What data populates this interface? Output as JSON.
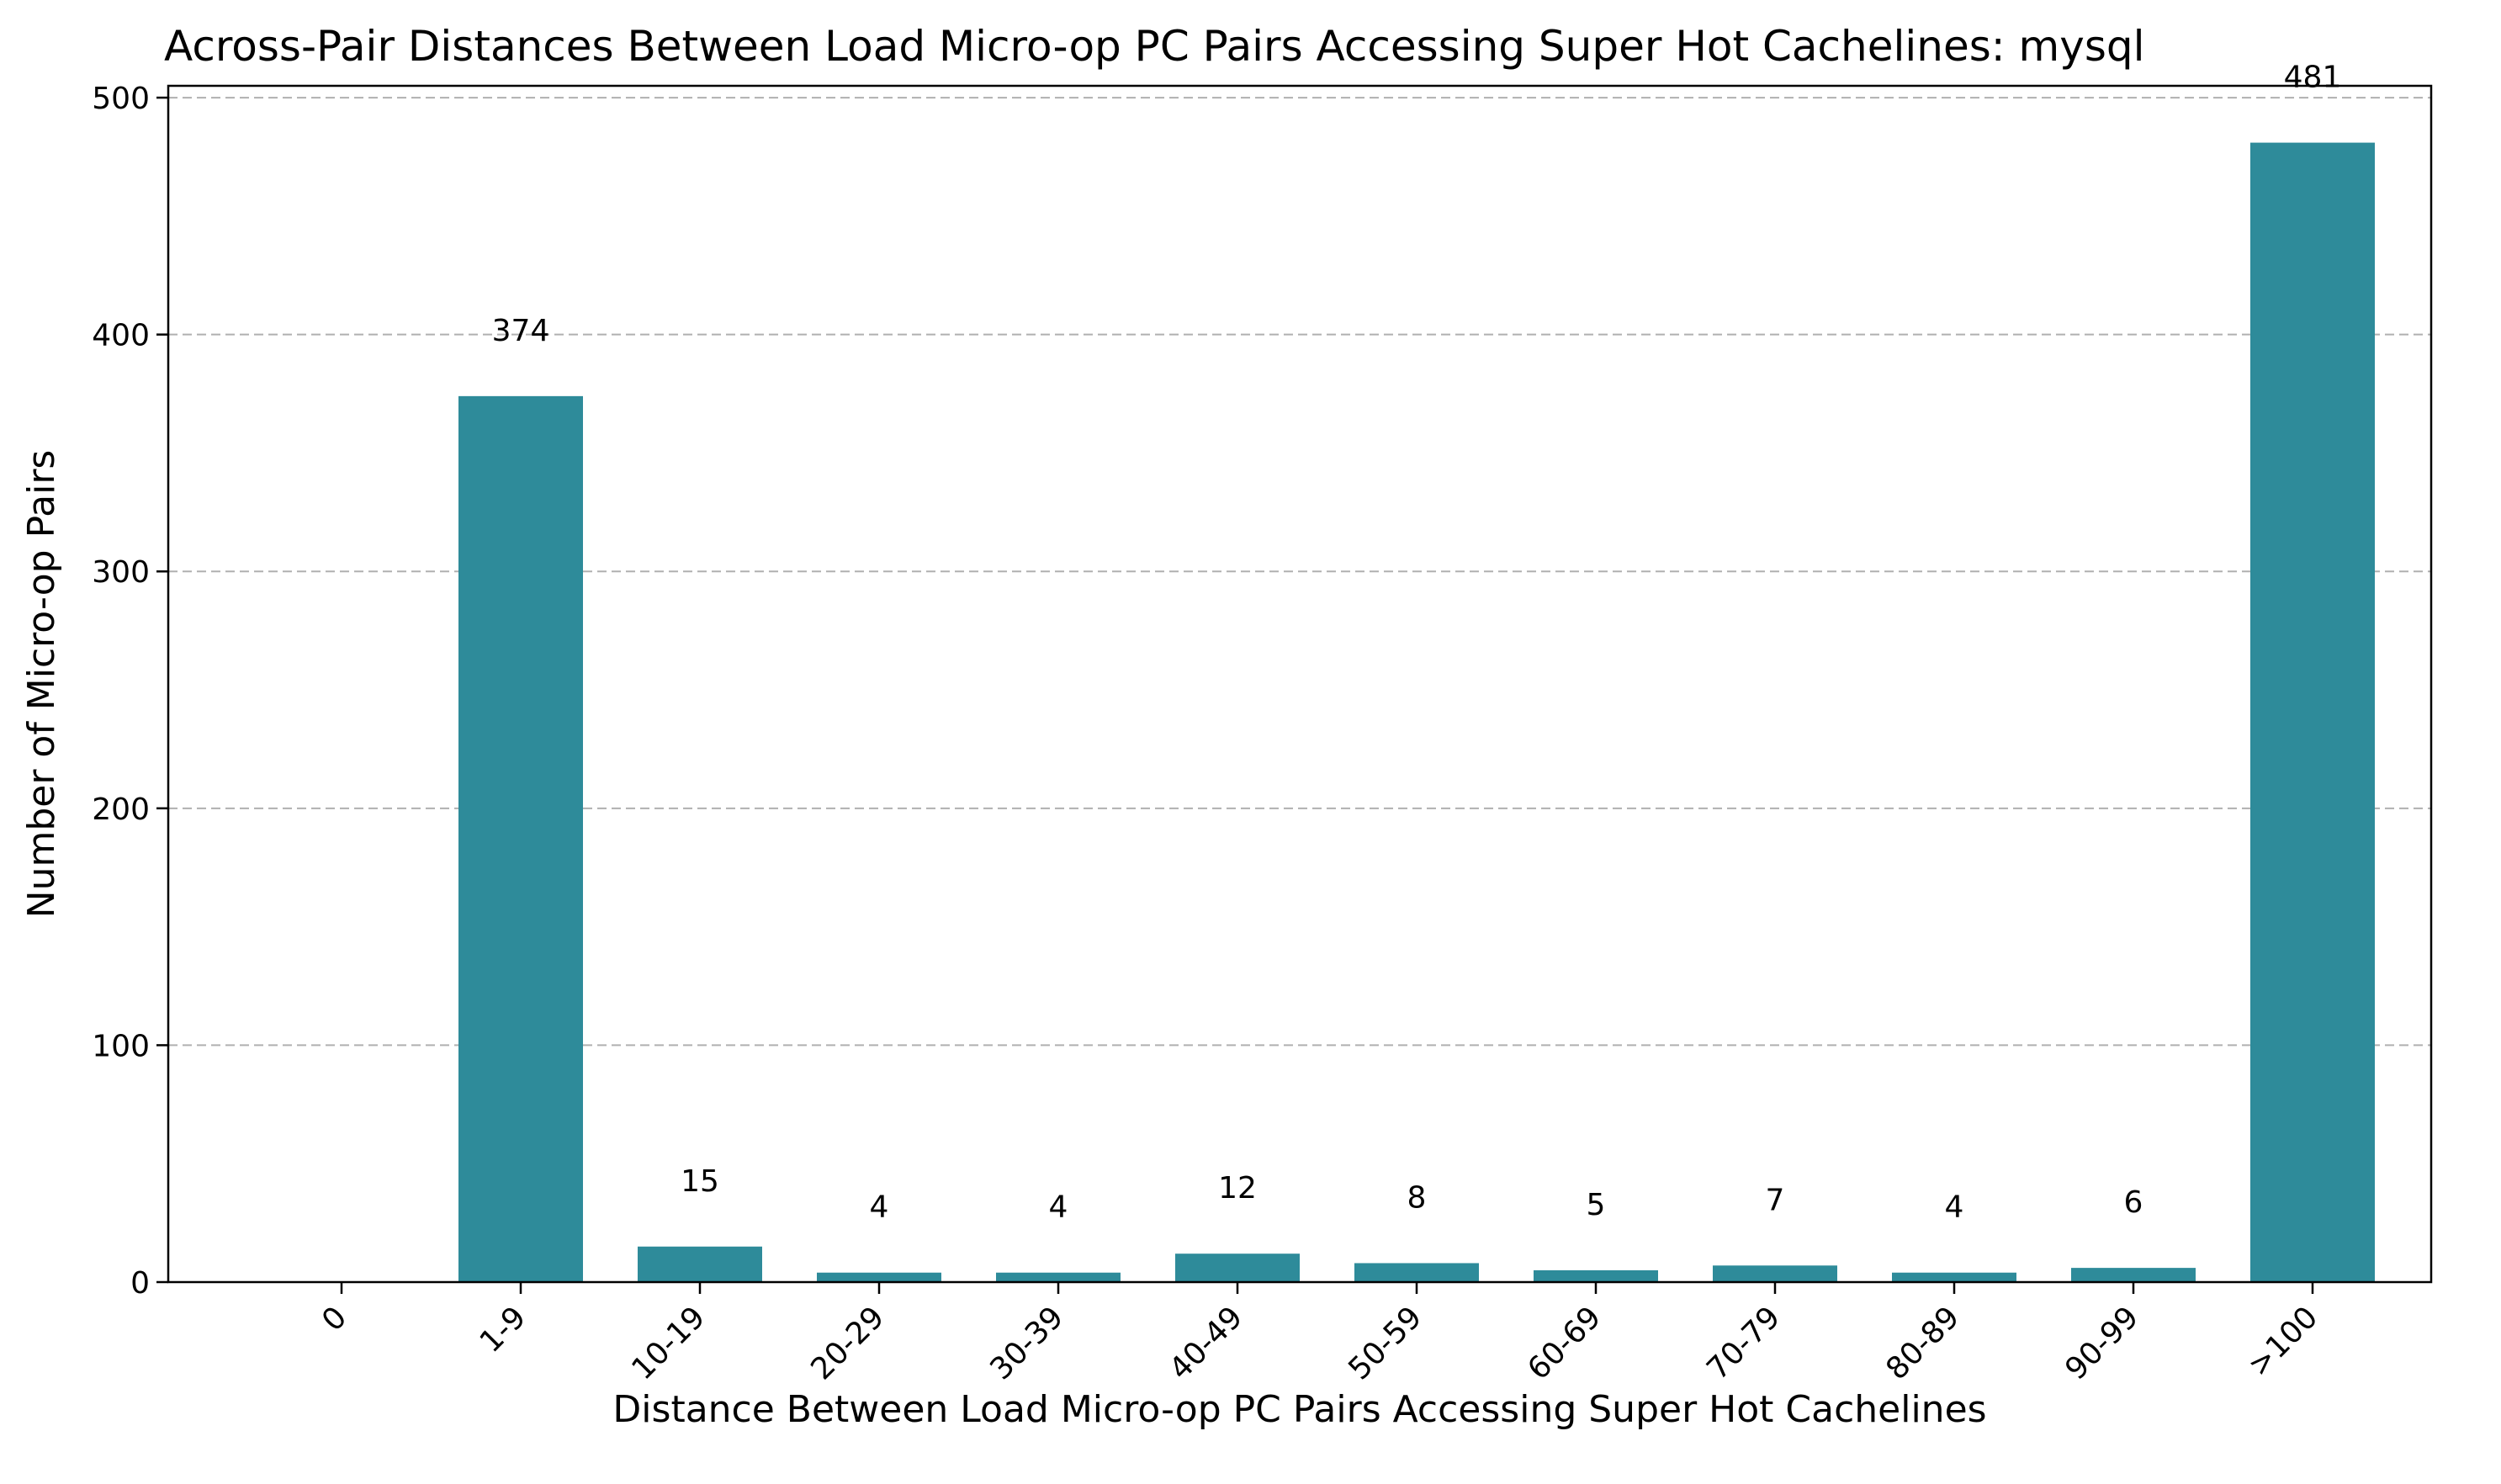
{
  "chart_data": {
    "type": "bar",
    "title": "Across-Pair Distances Between Load Micro-op PC Pairs Accessing Super Hot Cachelines: mysql",
    "xlabel": "Distance Between Load Micro-op PC Pairs Accessing Super Hot Cachelines",
    "ylabel": "Number of Micro-op Pairs",
    "categories": [
      "0",
      "1-9",
      "10-19",
      "20-29",
      "30-39",
      "40-49",
      "50-59",
      "60-69",
      "70-79",
      "80-89",
      "90-99",
      ">100"
    ],
    "values": [
      0,
      374,
      15,
      4,
      4,
      12,
      8,
      5,
      7,
      4,
      6,
      481
    ],
    "data_labels": [
      "",
      "374",
      "15",
      "4",
      "4",
      "12",
      "8",
      "5",
      "7",
      "4",
      "6",
      "481"
    ],
    "ylim": [
      0,
      505
    ],
    "yticks": [
      0,
      100,
      200,
      300,
      400,
      500
    ],
    "grid": "y-dashed",
    "legend": "none",
    "bar_color": "#2e8b9a"
  }
}
